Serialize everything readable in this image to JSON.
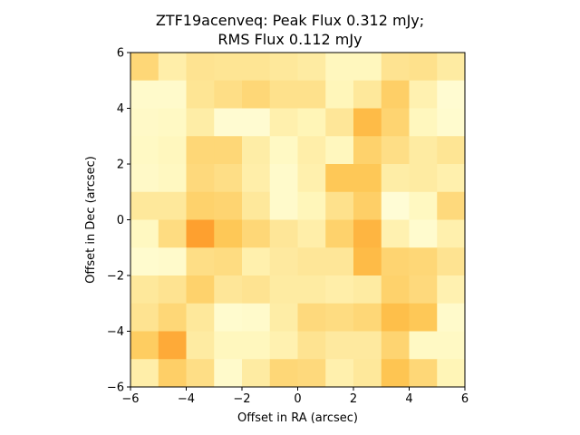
{
  "chart_data": {
    "type": "heatmap",
    "title": [
      "ZTF19acenveq: Peak Flux 0.312 mJy;",
      "RMS Flux 0.112 mJy"
    ],
    "xlabel": "Offset in RA (arcsec)",
    "ylabel": "Offset in Dec (arcsec)",
    "xlim": [
      -6,
      6
    ],
    "ylim": [
      -6,
      6
    ],
    "xticks": [
      -6,
      -4,
      -2,
      0,
      2,
      4,
      6
    ],
    "yticks": [
      -6,
      -4,
      -2,
      0,
      2,
      4,
      6
    ],
    "cell_size_arcsec": 1,
    "colormap": "YlOrBr",
    "value_range": [
      0,
      1
    ],
    "grid": false,
    "values_top_to_bottom": [
      [
        0.3,
        0.18,
        0.25,
        0.24,
        0.24,
        0.22,
        0.2,
        0.12,
        0.12,
        0.25,
        0.26,
        0.2
      ],
      [
        0.08,
        0.08,
        0.24,
        0.27,
        0.3,
        0.26,
        0.26,
        0.13,
        0.22,
        0.33,
        0.16,
        0.06
      ],
      [
        0.09,
        0.1,
        0.19,
        0.06,
        0.06,
        0.17,
        0.14,
        0.23,
        0.4,
        0.31,
        0.12,
        0.07
      ],
      [
        0.1,
        0.12,
        0.3,
        0.3,
        0.19,
        0.1,
        0.18,
        0.12,
        0.32,
        0.27,
        0.2,
        0.24
      ],
      [
        0.09,
        0.11,
        0.29,
        0.27,
        0.18,
        0.08,
        0.17,
        0.36,
        0.36,
        0.19,
        0.2,
        0.17
      ],
      [
        0.22,
        0.22,
        0.32,
        0.31,
        0.22,
        0.08,
        0.13,
        0.26,
        0.33,
        0.05,
        0.11,
        0.29
      ],
      [
        0.11,
        0.28,
        0.48,
        0.36,
        0.3,
        0.23,
        0.18,
        0.32,
        0.42,
        0.16,
        0.07,
        0.17
      ],
      [
        0.07,
        0.08,
        0.27,
        0.28,
        0.17,
        0.21,
        0.23,
        0.23,
        0.4,
        0.31,
        0.3,
        0.25
      ],
      [
        0.22,
        0.25,
        0.32,
        0.23,
        0.25,
        0.2,
        0.2,
        0.18,
        0.2,
        0.32,
        0.29,
        0.16
      ],
      [
        0.25,
        0.3,
        0.22,
        0.07,
        0.08,
        0.19,
        0.29,
        0.28,
        0.3,
        0.39,
        0.36,
        0.08
      ],
      [
        0.34,
        0.45,
        0.2,
        0.12,
        0.12,
        0.16,
        0.25,
        0.21,
        0.21,
        0.31,
        0.1,
        0.1
      ],
      [
        0.18,
        0.33,
        0.27,
        0.08,
        0.2,
        0.3,
        0.29,
        0.17,
        0.22,
        0.37,
        0.3,
        0.14
      ]
    ]
  }
}
